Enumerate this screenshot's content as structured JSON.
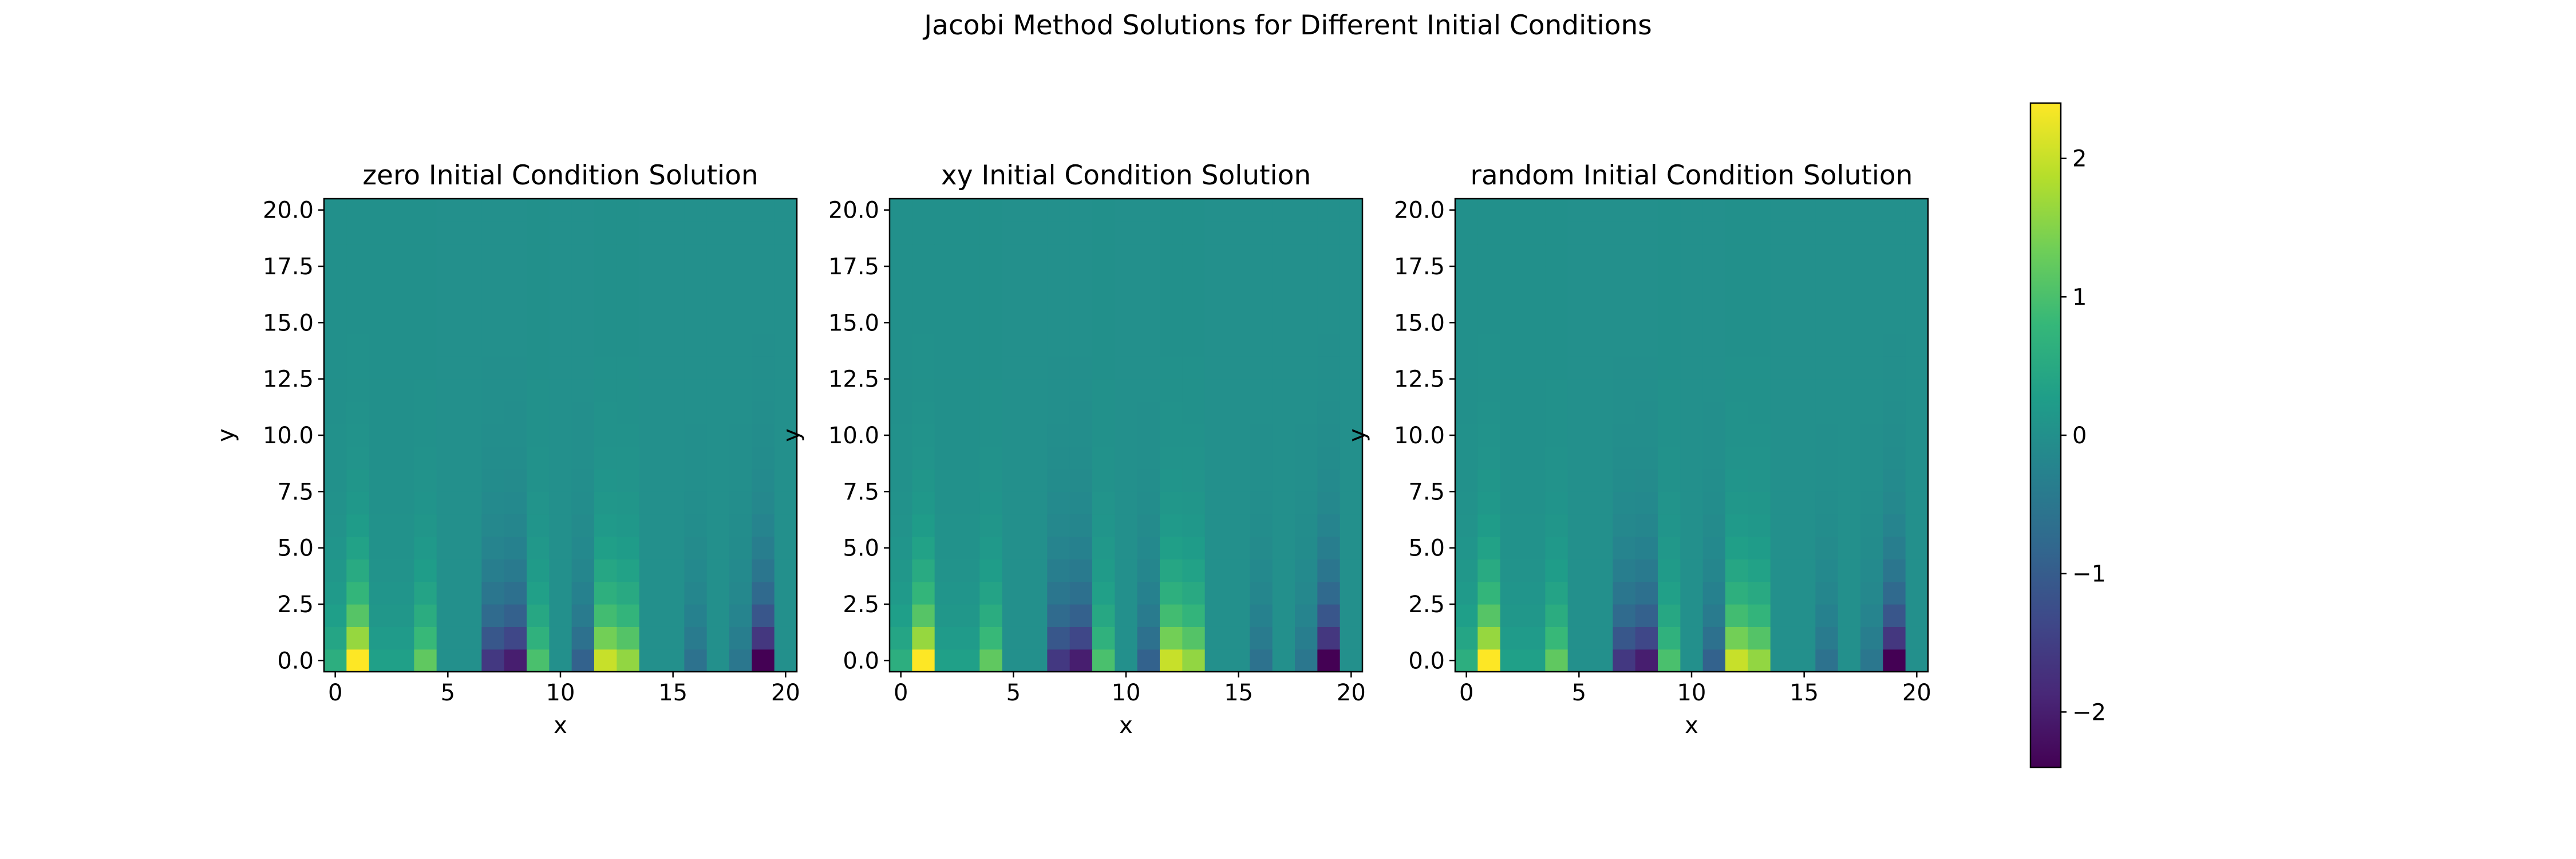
{
  "figure": {
    "suptitle": "Jacobi Method Solutions for Different Initial Conditions"
  },
  "colormap": "viridis",
  "colorbar": {
    "vmin": -2.4,
    "vmax": 2.4,
    "ticks": [
      2,
      1,
      0,
      -1,
      -2
    ],
    "tick_labels": [
      "2",
      "1",
      "0",
      "−1",
      "−2"
    ]
  },
  "chart_data": [
    {
      "type": "heatmap",
      "title": "zero Initial Condition Solution",
      "xlabel": "x",
      "ylabel": "y",
      "xlim": [
        -0.5,
        20.5
      ],
      "ylim": [
        -0.5,
        20.5
      ],
      "xticks": [
        0,
        5,
        10,
        15,
        20
      ],
      "yticks": [
        0.0,
        2.5,
        5.0,
        7.5,
        10.0,
        12.5,
        15.0,
        17.5,
        20.0
      ],
      "ytick_labels": [
        "0.0",
        "2.5",
        "5.0",
        "7.5",
        "10.0",
        "12.5",
        "15.0",
        "17.5",
        "20.0"
      ],
      "boundary_row_y0": [
        0.6,
        2.4,
        0.3,
        0.3,
        1.2,
        0.0,
        0.0,
        -1.6,
        -2.0,
        1.0,
        0.0,
        -0.9,
        2.0,
        1.6,
        0.0,
        0.0,
        -0.6,
        0.0,
        -0.5,
        -2.4,
        0.0
      ],
      "decay_per_row": 0.68
    },
    {
      "type": "heatmap",
      "title": "xy Initial Condition Solution",
      "xlabel": "x",
      "ylabel": "y",
      "xlim": [
        -0.5,
        20.5
      ],
      "ylim": [
        -0.5,
        20.5
      ],
      "xticks": [
        0,
        5,
        10,
        15,
        20
      ],
      "yticks": [
        0.0,
        2.5,
        5.0,
        7.5,
        10.0,
        12.5,
        15.0,
        17.5,
        20.0
      ],
      "ytick_labels": [
        "0.0",
        "2.5",
        "5.0",
        "7.5",
        "10.0",
        "12.5",
        "15.0",
        "17.5",
        "20.0"
      ],
      "boundary_row_y0": [
        0.6,
        2.4,
        0.3,
        0.3,
        1.2,
        0.0,
        0.0,
        -1.6,
        -2.0,
        1.0,
        0.0,
        -0.9,
        2.0,
        1.6,
        0.0,
        0.0,
        -0.6,
        0.0,
        -0.5,
        -2.4,
        0.0
      ],
      "decay_per_row": 0.68
    },
    {
      "type": "heatmap",
      "title": "random Initial Condition Solution",
      "xlabel": "x",
      "ylabel": "y",
      "xlim": [
        -0.5,
        20.5
      ],
      "ylim": [
        -0.5,
        20.5
      ],
      "xticks": [
        0,
        5,
        10,
        15,
        20
      ],
      "yticks": [
        0.0,
        2.5,
        5.0,
        7.5,
        10.0,
        12.5,
        15.0,
        17.5,
        20.0
      ],
      "ytick_labels": [
        "0.0",
        "2.5",
        "5.0",
        "7.5",
        "10.0",
        "12.5",
        "15.0",
        "17.5",
        "20.0"
      ],
      "boundary_row_y0": [
        0.6,
        2.4,
        0.3,
        0.3,
        1.2,
        0.0,
        0.0,
        -1.6,
        -2.0,
        1.0,
        0.0,
        -0.9,
        2.0,
        1.6,
        0.0,
        0.0,
        -0.6,
        0.0,
        -0.5,
        -2.4,
        0.0
      ],
      "decay_per_row": 0.68
    }
  ]
}
